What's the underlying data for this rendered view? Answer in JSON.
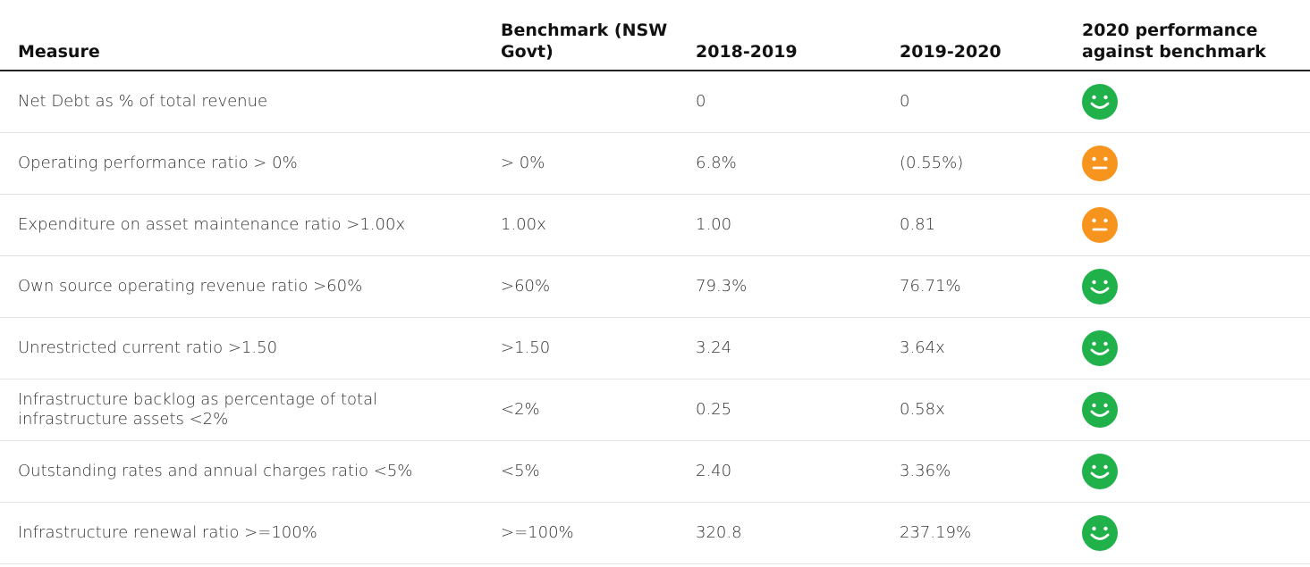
{
  "table": {
    "columns": [
      "Measure",
      "Benchmark (NSW Govt)",
      "2018-2019",
      "2019-2020",
      "2020 performance against benchmark"
    ],
    "rows": [
      {
        "cells": [
          "Net Debt as % of total revenue",
          "",
          "0",
          "0"
        ],
        "icon": "smile",
        "icon_color": "#21b14b"
      },
      {
        "cells": [
          "Operating performance ratio > 0%",
          "> 0%",
          "6.8%",
          "(0.55%)"
        ],
        "icon": "neutral",
        "icon_color": "#f7941d"
      },
      {
        "cells": [
          "Expenditure on asset maintenance ratio >1.00x",
          "1.00x",
          "1.00",
          "0.81"
        ],
        "icon": "neutral",
        "icon_color": "#f7941d"
      },
      {
        "cells": [
          "Own source operating revenue ratio >60%",
          ">60%",
          "79.3%",
          "76.71%"
        ],
        "icon": "smile",
        "icon_color": "#21b14b"
      },
      {
        "cells": [
          "Unrestricted current ratio >1.50",
          ">1.50",
          "3.24",
          "3.64x"
        ],
        "icon": "smile",
        "icon_color": "#21b14b"
      },
      {
        "cells": [
          "Infrastructure backlog as percentage of total infrastructure assets <2%",
          "<2%",
          "0.25",
          "0.58x"
        ],
        "icon": "smile",
        "icon_color": "#21b14b"
      },
      {
        "cells": [
          "Outstanding rates and annual charges ratio <5%",
          "<5%",
          "2.40",
          "3.36%"
        ],
        "icon": "smile",
        "icon_color": "#21b14b"
      },
      {
        "cells": [
          "Infrastructure renewal ratio >=100%",
          ">=100%",
          "320.8",
          "237.19%"
        ],
        "icon": "smile",
        "icon_color": "#21b14b"
      }
    ]
  }
}
